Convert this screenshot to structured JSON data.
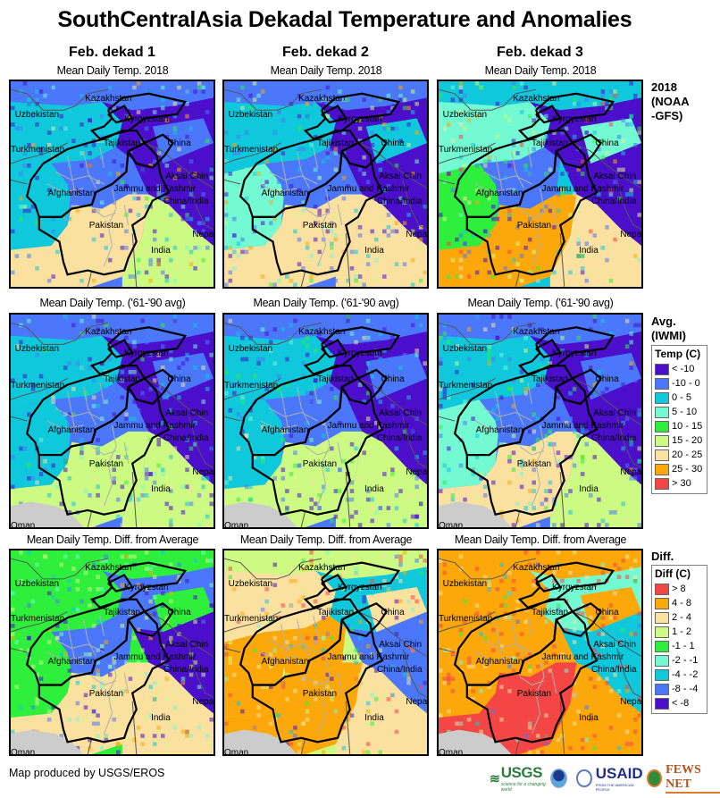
{
  "title": "SouthCentralAsia Dekadal Temperature and Anomalies",
  "columns": [
    {
      "heading": "Feb. dekad 1"
    },
    {
      "heading": "Feb. dekad 2"
    },
    {
      "heading": "Feb. dekad 3"
    }
  ],
  "rows": [
    {
      "label_lines": [
        "2018",
        "(NOAA",
        "-GFS)"
      ],
      "panel_title": "Mean Daily Temp. 2018",
      "legend_ref": "temp"
    },
    {
      "label_lines": [
        "Avg.",
        "(IWMI)"
      ],
      "panel_title": "Mean Daily Temp. ('61-'90 avg)",
      "legend_ref": "temp"
    },
    {
      "label_lines": [
        "Diff."
      ],
      "panel_title": "Mean Daily Temp. Diff. from Average",
      "legend_ref": "diff"
    }
  ],
  "map_labels": [
    "Kazakhstan",
    "Uzbekistan",
    "Kyrgyzstan",
    "Tajikistan",
    "China",
    "Turkmenistan",
    "Aksai Chin",
    "Jammu and Kashmir",
    "Afghanistan",
    "China/India",
    "Pakistan",
    "Nepal",
    "India",
    "Oman"
  ],
  "legends": {
    "temp": {
      "title": "Temp (C)",
      "items": [
        {
          "label": "< -10",
          "color": "#4b0fcc"
        },
        {
          "label": "-10 - 0",
          "color": "#4b78fa"
        },
        {
          "label": "0 - 5",
          "color": "#0fc8dc"
        },
        {
          "label": "5 - 10",
          "color": "#73fad2"
        },
        {
          "label": "10 - 15",
          "color": "#2ef03c"
        },
        {
          "label": "15 - 20",
          "color": "#cdfa82"
        },
        {
          "label": "20 - 25",
          "color": "#fae1a0"
        },
        {
          "label": "25 - 30",
          "color": "#fca80a"
        },
        {
          "label": "> 30",
          "color": "#f54646"
        }
      ]
    },
    "diff": {
      "title": "Diff (C)",
      "items": [
        {
          "label": "> 8",
          "color": "#f54646"
        },
        {
          "label": "4 - 8",
          "color": "#fca80a"
        },
        {
          "label": "2 - 4",
          "color": "#fae1a0"
        },
        {
          "label": "1 - 2",
          "color": "#cdfa82"
        },
        {
          "label": "-1 - 1",
          "color": "#2ef03c"
        },
        {
          "label": "-2 - -1",
          "color": "#73fad2"
        },
        {
          "label": "-4 - -2",
          "color": "#0fc8dc"
        },
        {
          "label": "-8 - -4",
          "color": "#4b78fa"
        },
        {
          "label": "< -8",
          "color": "#4b0fcc"
        }
      ]
    }
  },
  "map_classes": {
    "note": "Dominant legend class index per zone (0-8, index into the row's legend items); zones: north, northwest, west, central_afg, high_mountain, himalaya, china_east, south_pak, india",
    "panels": [
      [
        [
          1,
          2,
          2,
          1,
          0,
          0,
          1,
          6,
          5
        ],
        [
          1,
          2,
          3,
          1,
          0,
          0,
          2,
          6,
          6
        ],
        [
          2,
          3,
          4,
          1,
          0,
          0,
          3,
          7,
          6
        ]
      ],
      [
        [
          1,
          2,
          2,
          1,
          0,
          0,
          1,
          5,
          5
        ],
        [
          1,
          2,
          2,
          1,
          0,
          0,
          1,
          5,
          5
        ],
        [
          1,
          2,
          3,
          1,
          0,
          0,
          1,
          6,
          5
        ]
      ],
      [
        [
          4,
          4,
          4,
          7,
          7,
          8,
          4,
          2,
          2
        ],
        [
          3,
          2,
          1,
          1,
          6,
          7,
          2,
          1,
          2
        ],
        [
          1,
          1,
          1,
          1,
          5,
          6,
          1,
          0,
          1
        ]
      ]
    ]
  },
  "credit": "Map produced by USGS/EROS",
  "logos": {
    "usgs": "USGS",
    "usgs_tagline": "science for a changing world",
    "usaid": "USAID",
    "usaid_tagline": "FROM THE AMERICAN PEOPLE",
    "fews": "FEWS NET"
  }
}
